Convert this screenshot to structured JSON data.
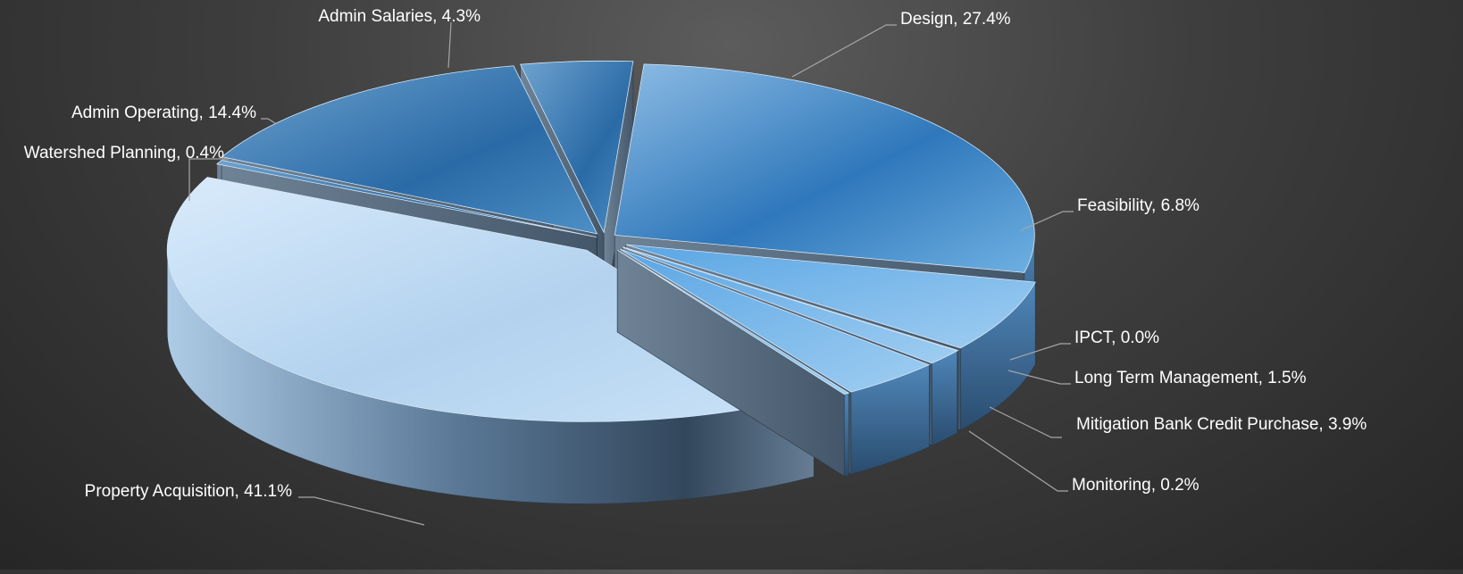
{
  "chart_data": {
    "type": "pie",
    "style": "3d-exploded",
    "labels": [
      "Design",
      "Feasibility",
      "IPCT",
      "Long Term Management",
      "Mitigation Bank Credit Purchase",
      "Monitoring",
      "Property Acquisition",
      "Watershed Planning",
      "Admin Operating",
      "Admin Salaries"
    ],
    "values": [
      27.4,
      6.8,
      0.0,
      1.5,
      3.9,
      0.2,
      41.1,
      0.4,
      14.4,
      4.3
    ],
    "data_labels": [
      "Design, 27.4%",
      "Feasibility, 6.8%",
      "IPCT, 0.0%",
      "Long Term Management, 1.5%",
      "Mitigation Bank Credit Purchase, 3.9%",
      "Monitoring, 0.2%",
      "Property Acquisition, 41.1%",
      "Watershed Planning, 0.4%",
      "Admin Operating, 14.4%",
      "Admin Salaries, 4.3%"
    ],
    "unit": "%",
    "title": "",
    "legend": "none",
    "colors": {
      "background": "#333333",
      "slice_dark": "#2e75b6",
      "slice_light": "#c5dff3",
      "label_text": "#ffffff",
      "leader_line": "#a6a6a6"
    }
  }
}
